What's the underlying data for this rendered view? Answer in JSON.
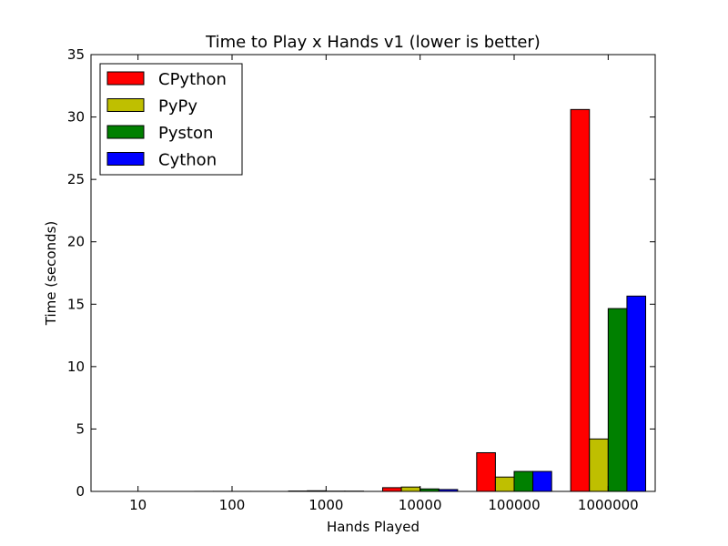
{
  "chart_data": {
    "type": "bar",
    "title": "Time to Play x Hands v1 (lower is better)",
    "xlabel": "Hands Played",
    "ylabel": "Time (seconds)",
    "categories": [
      "10",
      "100",
      "1000",
      "10000",
      "100000",
      "1000000"
    ],
    "ylim": [
      0,
      35
    ],
    "yticks": [
      0,
      5,
      10,
      15,
      20,
      25,
      30,
      35
    ],
    "legend_position": "top-left",
    "grid": false,
    "series": [
      {
        "name": "CPython",
        "color": "#ff0000",
        "values": [
          0.0,
          0.003,
          0.03,
          0.3,
          3.1,
          30.6
        ]
      },
      {
        "name": "PyPy",
        "color": "#bfbf00",
        "values": [
          0.0,
          0.005,
          0.05,
          0.35,
          1.15,
          4.2
        ]
      },
      {
        "name": "Pyston",
        "color": "#008000",
        "values": [
          0.0,
          0.002,
          0.02,
          0.2,
          1.6,
          14.65
        ]
      },
      {
        "name": "Cython",
        "color": "#0000ff",
        "values": [
          0.0,
          0.002,
          0.02,
          0.15,
          1.6,
          15.65
        ]
      }
    ]
  }
}
